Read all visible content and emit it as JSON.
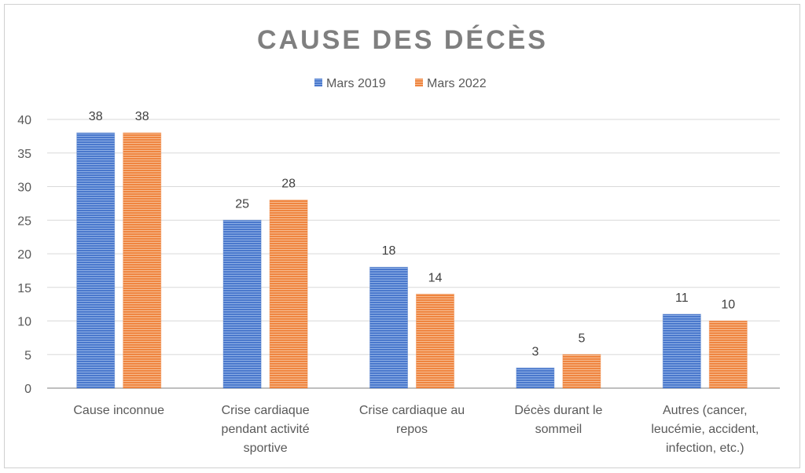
{
  "chart_data": {
    "type": "bar",
    "title": "CAUSE DES DÉCÈS",
    "categories": [
      [
        "Cause inconnue"
      ],
      [
        "Crise cardiaque",
        "pendant activité",
        "sportive"
      ],
      [
        "Crise cardiaque au",
        "repos"
      ],
      [
        "Décès durant le",
        "sommeil"
      ],
      [
        "Autres (cancer,",
        "leucémie, accident,",
        "infection, etc.)"
      ]
    ],
    "series": [
      {
        "name": "Mars 2019",
        "values": [
          38,
          25,
          18,
          3,
          11
        ],
        "color": "#4472C4"
      },
      {
        "name": "Mars 2022",
        "values": [
          38,
          28,
          14,
          5,
          10
        ],
        "color": "#ED7D31"
      }
    ],
    "ylim": [
      0,
      40
    ],
    "yticks": [
      0,
      5,
      10,
      15,
      20,
      25,
      30,
      35,
      40
    ],
    "grid": true,
    "legend": "top-center",
    "xlabel": "",
    "ylabel": ""
  }
}
